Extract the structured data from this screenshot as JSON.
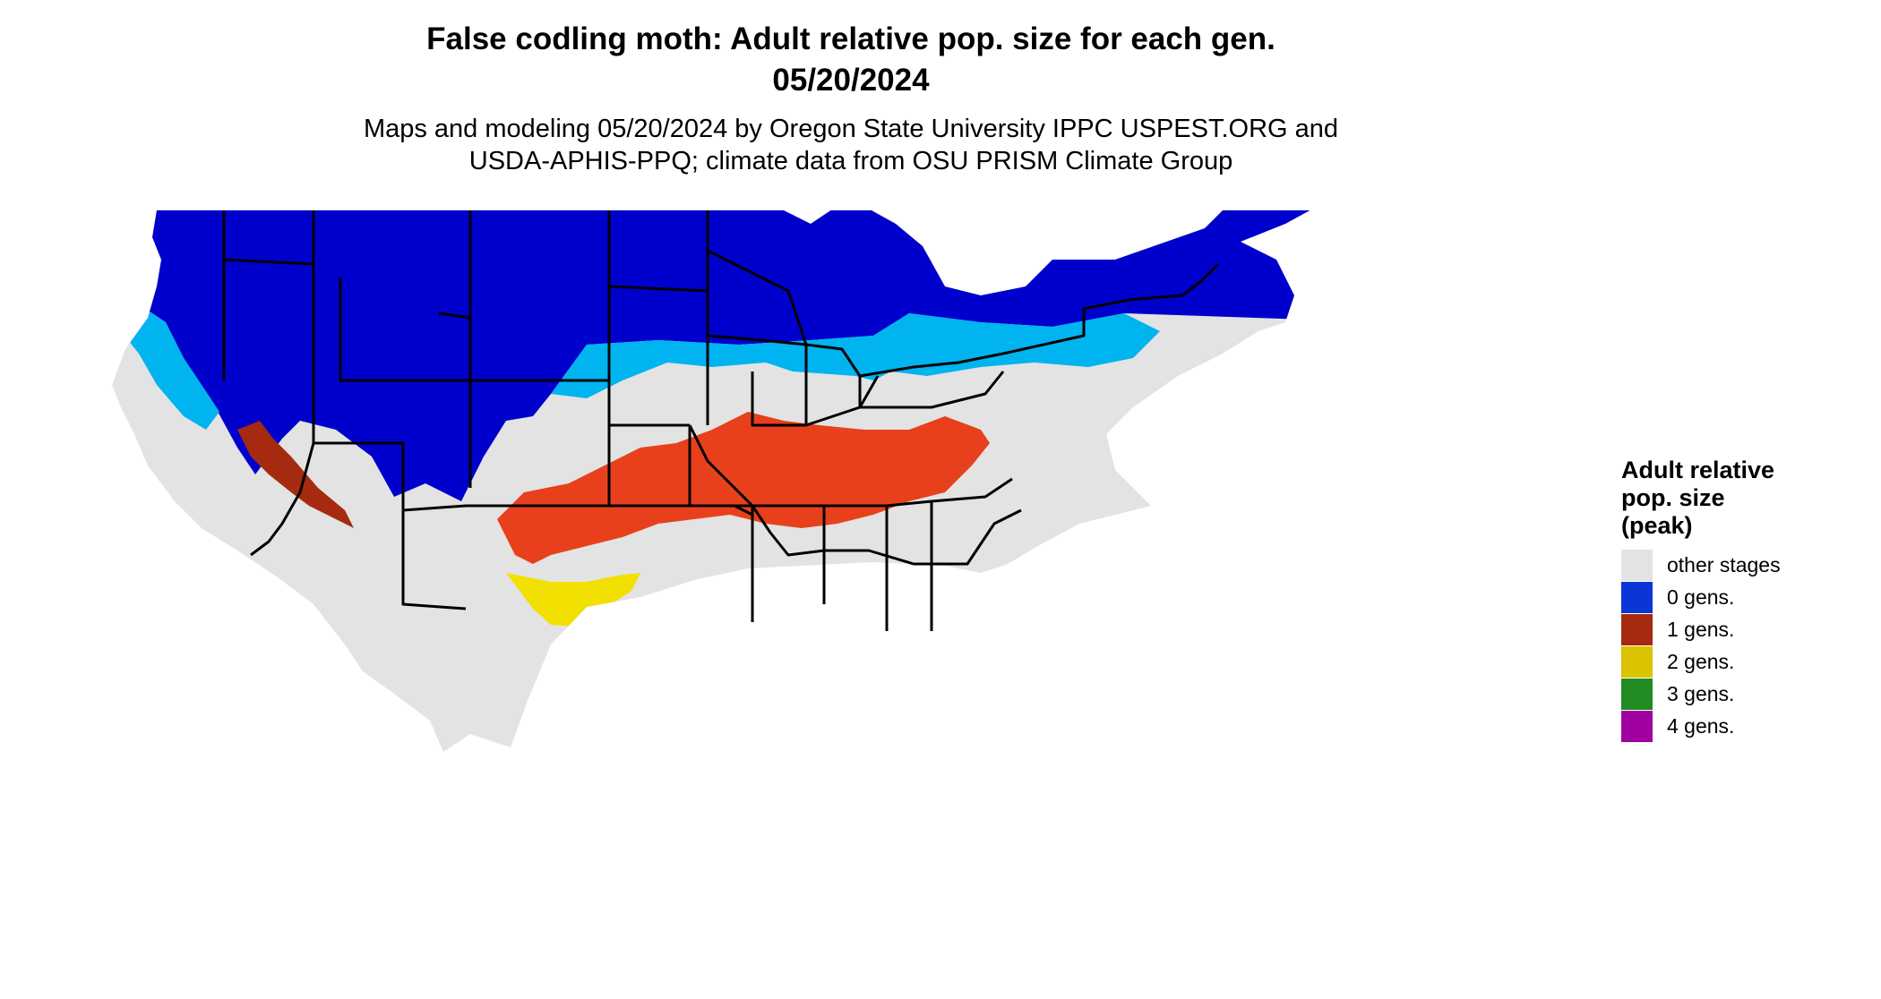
{
  "title": {
    "line1": "False codling moth: Adult relative pop. size for each gen.",
    "line2": "05/20/2024"
  },
  "subtitle": {
    "line1": "Maps and modeling 05/20/2024 by Oregon State University IPPC USPEST.ORG and",
    "line2": "USDA-APHIS-PPQ; climate data from OSU PRISM Climate Group"
  },
  "legend": {
    "title_line1": "Adult relative",
    "title_line2": "pop. size",
    "title_line3": "(peak)",
    "items": [
      {
        "label": "other stages",
        "color": "#e3e3e3"
      },
      {
        "label": "0 gens.",
        "color": "#0a36d6"
      },
      {
        "label": "1 gens.",
        "color": "#a52a10"
      },
      {
        "label": "2 gens.",
        "color": "#dcc300"
      },
      {
        "label": "3 gens.",
        "color": "#228b22"
      },
      {
        "label": "4 gens.",
        "color": "#a000a0"
      }
    ]
  },
  "colors": {
    "zero_dark": "#0000cc",
    "zero_mid": "#0a36d6",
    "zero_light": "#00b4f0",
    "other": "#e3e3e3",
    "one_gen": "#a52a10",
    "one_gen_orange": "#e8401c",
    "two_gen": "#f2e000",
    "three_gen": "#2e9b2e",
    "border": "#000000"
  }
}
